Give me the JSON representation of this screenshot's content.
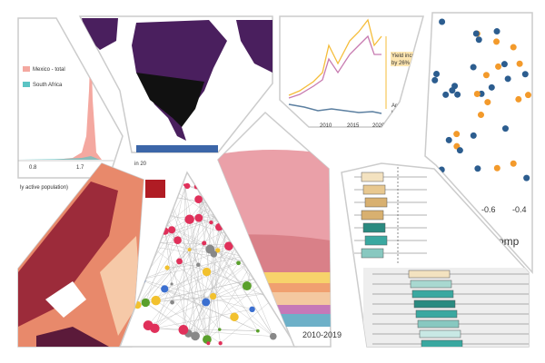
{
  "histogram": {
    "legend": [
      "Mexico - total",
      "South Africa"
    ],
    "ticks": [
      "0.8",
      "1.7"
    ],
    "axis_label": "ly active population)"
  },
  "map_panel": {
    "caption": "in 20"
  },
  "line_panel": {
    "annotations": [
      "Yield incre",
      "by 26%",
      "Area de",
      "by 7%"
    ],
    "ticks": [
      "2010",
      "2015",
      "2020"
    ]
  },
  "scatter_panel": {
    "ticks": [
      "-0.6",
      "-0.4"
    ],
    "axis_label": "omp"
  },
  "area_panel": {
    "caption": "2010-2019"
  }
}
